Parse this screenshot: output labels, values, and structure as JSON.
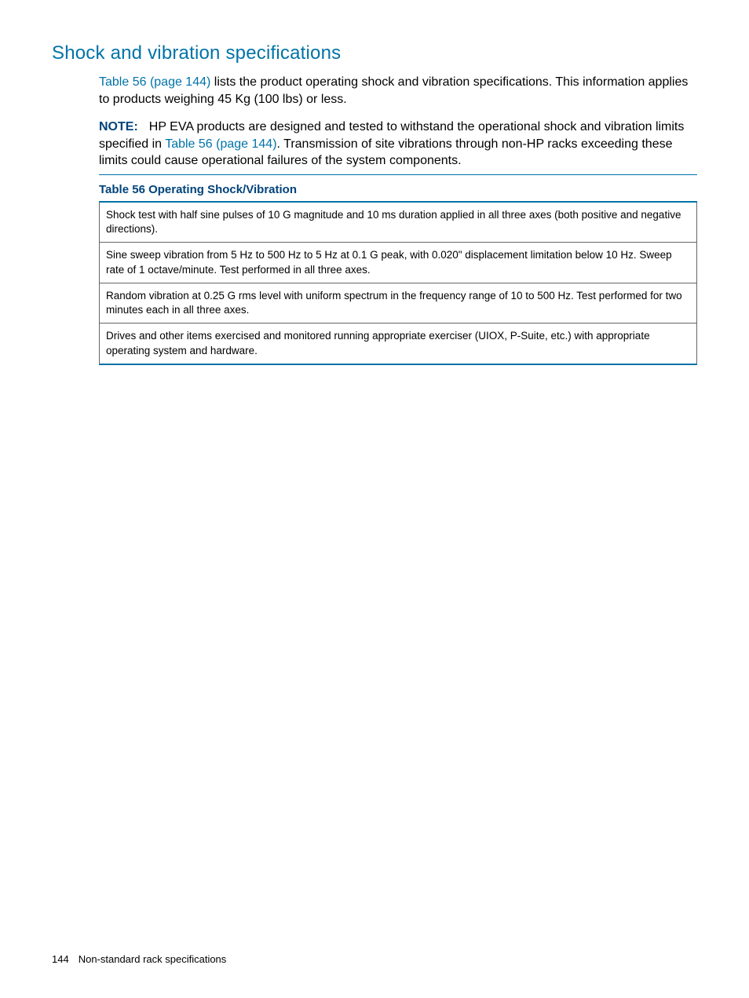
{
  "colors": {
    "heading": "#0073a8",
    "link": "#0073a8",
    "note_label": "#00437a",
    "table_title": "#00437a",
    "table_border_accent": "#0073a8",
    "table_border_cell": "#666666",
    "body_text": "#000000",
    "background": "#ffffff"
  },
  "typography": {
    "heading_fontsize": 24,
    "body_fontsize": 16,
    "table_title_fontsize": 15,
    "table_cell_fontsize": 13.5,
    "footer_fontsize": 13,
    "font_family": "Arial, Helvetica, sans-serif"
  },
  "heading": "Shock and vibration specifications",
  "intro": {
    "link1": "Table 56 (page 144)",
    "text1": " lists the product operating shock and vibration specifications. This information applies to products weighing 45 Kg (100 lbs) or less."
  },
  "note": {
    "label": "NOTE:",
    "text_before": "HP EVA products are designed and tested to withstand the operational shock and vibration limits specified in ",
    "link": "Table 56 (page 144)",
    "text_after": ". Transmission of site vibrations through non-HP racks exceeding these limits could cause operational failures of the system components."
  },
  "table": {
    "title": "Table 56 Operating Shock/Vibration",
    "rows": [
      "Shock test with half sine pulses of 10 G magnitude and 10 ms duration applied in all three axes (both positive and negative directions).",
      "Sine sweep vibration from 5 Hz to 500 Hz to 5 Hz at 0.1 G peak, with 0.020\" displacement limitation below 10 Hz. Sweep rate of 1 octave/minute. Test performed in all three axes.",
      "Random vibration at 0.25 G rms level with uniform spectrum in the frequency range of 10 to 500 Hz. Test performed for two minutes each in all three axes.",
      "Drives and other items exercised and monitored running appropriate exerciser (UIOX, P-Suite, etc.) with appropriate operating system and hardware."
    ]
  },
  "footer": {
    "page_number": "144",
    "section": "Non-standard rack specifications"
  }
}
